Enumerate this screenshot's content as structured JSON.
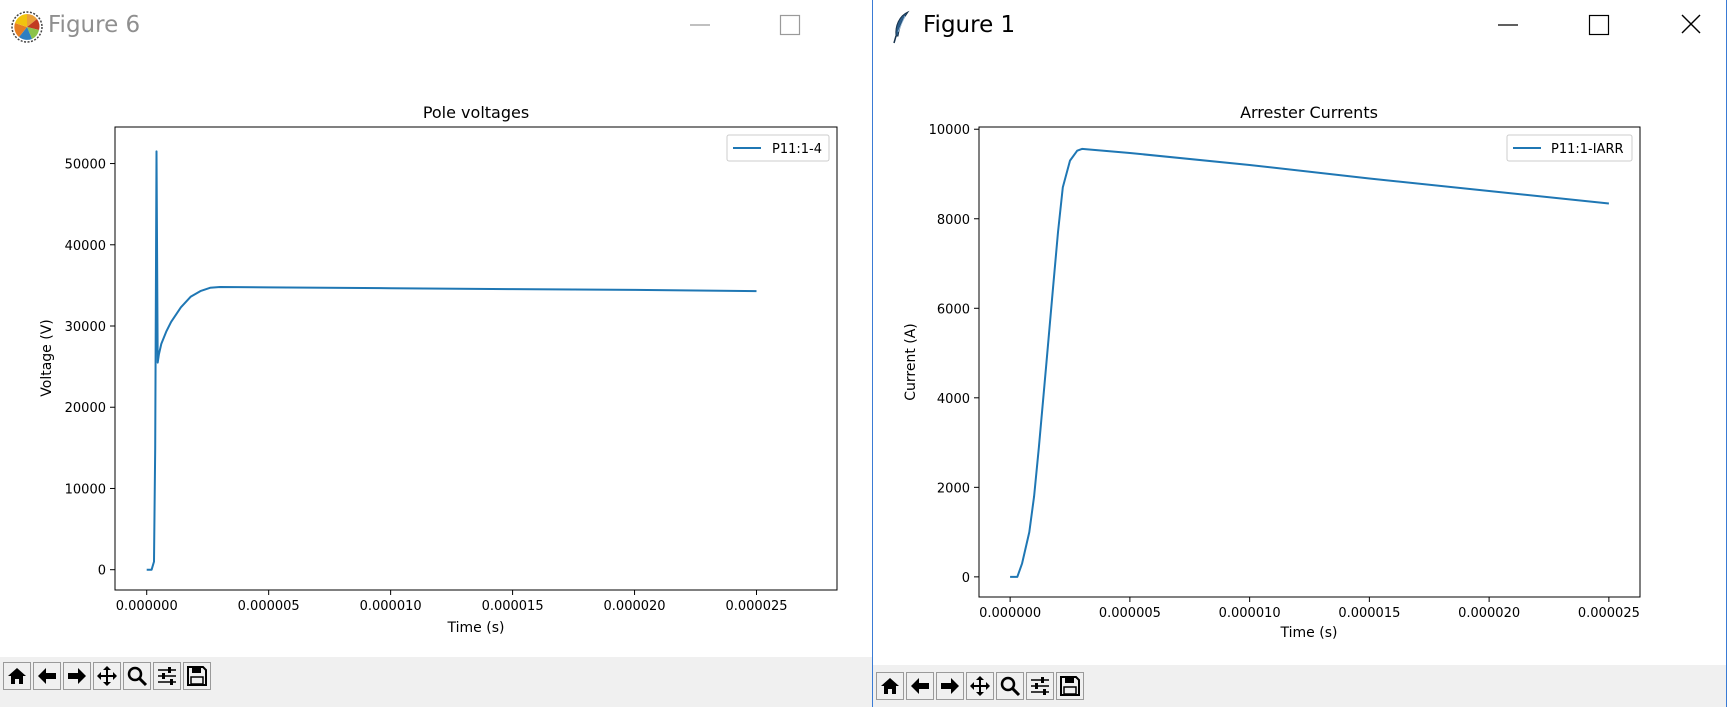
{
  "windows": [
    {
      "title": "Figure 6",
      "chart_data": {
        "type": "line",
        "title": "Pole voltages",
        "xlabel": "Time (s)",
        "ylabel": "Voltage (V)",
        "xlim": [
          -1.3e-06,
          2.83e-05
        ],
        "ylim": [
          -2500,
          54500
        ],
        "xticks": [
          0,
          5e-06,
          1e-05,
          1.5e-05,
          2e-05,
          2.5e-05
        ],
        "xtick_labels": [
          "0.000000",
          "0.000005",
          "0.000010",
          "0.000015",
          "0.000020",
          "0.000025"
        ],
        "yticks": [
          0,
          10000,
          20000,
          30000,
          40000,
          50000
        ],
        "ytick_labels": [
          "0",
          "10000",
          "20000",
          "30000",
          "40000",
          "50000"
        ],
        "legend_position": "top-right",
        "series": [
          {
            "name": "P11:1-4",
            "color": "#1f77b4",
            "x": [
              0,
              2e-07,
              3e-07,
              3.5e-07,
              4e-07,
              4.5e-07,
              5e-07,
              6e-07,
              8e-07,
              1e-06,
              1.4e-06,
              1.8e-06,
              2.2e-06,
              2.6e-06,
              3e-06,
              5e-06,
              1e-05,
              1.5e-05,
              2e-05,
              2.5e-05
            ],
            "y": [
              0,
              0,
              1000,
              15000,
              51500,
              25500,
              26500,
              27800,
              29300,
              30500,
              32300,
              33600,
              34300,
              34700,
              34800,
              34750,
              34650,
              34550,
              34450,
              34300
            ]
          }
        ]
      }
    },
    {
      "title": "Figure 1",
      "chart_data": {
        "type": "line",
        "title": "Arrester Currents",
        "xlabel": "Time (s)",
        "ylabel": "Current (A)",
        "xlim": [
          -1.3e-06,
          2.63e-05
        ],
        "ylim": [
          -450,
          10050
        ],
        "xticks": [
          0,
          5e-06,
          1e-05,
          1.5e-05,
          2e-05,
          2.5e-05
        ],
        "xtick_labels": [
          "0.000000",
          "0.000005",
          "0.000010",
          "0.000015",
          "0.000020",
          "0.000025"
        ],
        "yticks": [
          0,
          2000,
          4000,
          6000,
          8000,
          10000
        ],
        "ytick_labels": [
          "0",
          "2000",
          "4000",
          "6000",
          "8000",
          "10000"
        ],
        "legend_position": "top-right",
        "series": [
          {
            "name": "P11:1-IARR",
            "color": "#1f77b4",
            "x": [
              0,
              3e-07,
              5e-07,
              8e-07,
              1e-06,
              1.2e-06,
              1.5e-06,
              1.8e-06,
              2e-06,
              2.2e-06,
              2.5e-06,
              2.8e-06,
              3e-06,
              5e-06,
              1e-05,
              1.5e-05,
              2e-05,
              2.5e-05
            ],
            "y": [
              0,
              0,
              300,
              1000,
              1800,
              2900,
              4700,
              6500,
              7700,
              8700,
              9300,
              9520,
              9560,
              9470,
              9200,
              8900,
              8620,
              8340
            ]
          }
        ]
      }
    }
  ]
}
